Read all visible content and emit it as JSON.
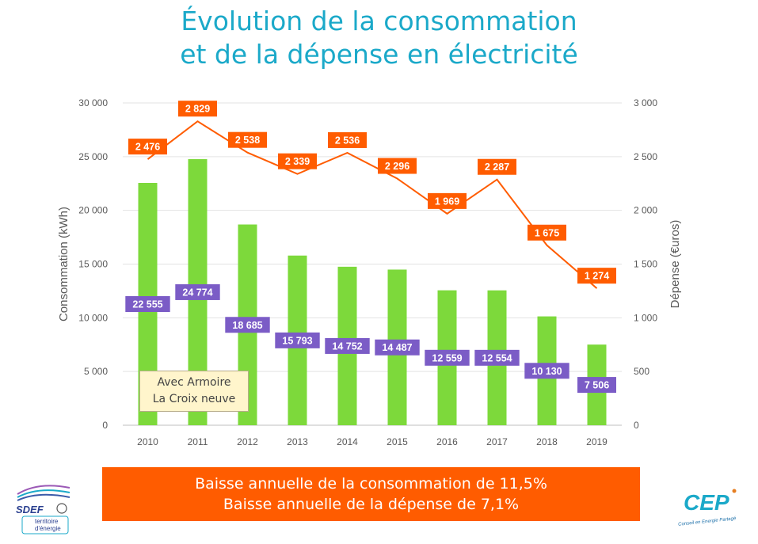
{
  "title_line1": "Évolution de la consommation",
  "title_line2": "et de la dépense en électricité",
  "banner_line1": "Baisse annuelle de la consommation de 11,5%",
  "banner_line2": "Baisse annuelle de la dépense de 7,1%",
  "annotation_line1": "Avec Armoire",
  "annotation_line2": "La Croix neuve",
  "logo_left_text": "SDEF",
  "logo_left_sub1": "territoire",
  "logo_left_sub2": "d'énergie",
  "logo_right_text": "CEP",
  "logo_right_sub": "Conseil en Energie Partagé",
  "colors": {
    "title": "#1BA9C9",
    "bar": "#7DD93B",
    "bar_label": "#7B5CC6",
    "line": "#FF5C00",
    "banner": "#FF5C00"
  },
  "chart_data": {
    "type": "bar",
    "categories": [
      "2010",
      "2011",
      "2012",
      "2013",
      "2014",
      "2015",
      "2016",
      "2017",
      "2018",
      "2019"
    ],
    "series": [
      {
        "axis": "left",
        "type": "bar",
        "values": [
          22555,
          24774,
          18685,
          15793,
          14752,
          14487,
          12559,
          12554,
          10130,
          7506
        ],
        "labels": [
          "22 555",
          "24 774",
          "18 685",
          "15 793",
          "14 752",
          "14 487",
          "12 559",
          "12 554",
          "10 130",
          "7 506"
        ]
      },
      {
        "axis": "right",
        "type": "line",
        "values": [
          2476,
          2829,
          2538,
          2339,
          2536,
          2296,
          1969,
          2287,
          1675,
          1274
        ],
        "labels": [
          "2 476",
          "2 829",
          "2 538",
          "2 339",
          "2 536",
          "2 296",
          "1 969",
          "2 287",
          "1 675",
          "1 274"
        ]
      }
    ],
    "ylabel": "Consommation (kWh)",
    "y2label": "Dépense (€uros)",
    "ylim": [
      0,
      30000
    ],
    "y2lim": [
      0,
      3000
    ],
    "yticks": [
      0,
      5000,
      10000,
      15000,
      20000,
      25000,
      30000
    ],
    "yticklabels": [
      "0",
      "5 000",
      "10 000",
      "15 000",
      "20 000",
      "25 000",
      "30 000"
    ],
    "y2ticks": [
      0,
      500,
      1000,
      1500,
      2000,
      2500,
      3000
    ],
    "y2ticklabels": [
      "0",
      "500",
      "1 000",
      "1 500",
      "2 000",
      "2 500",
      "3 000"
    ],
    "grid": true
  }
}
